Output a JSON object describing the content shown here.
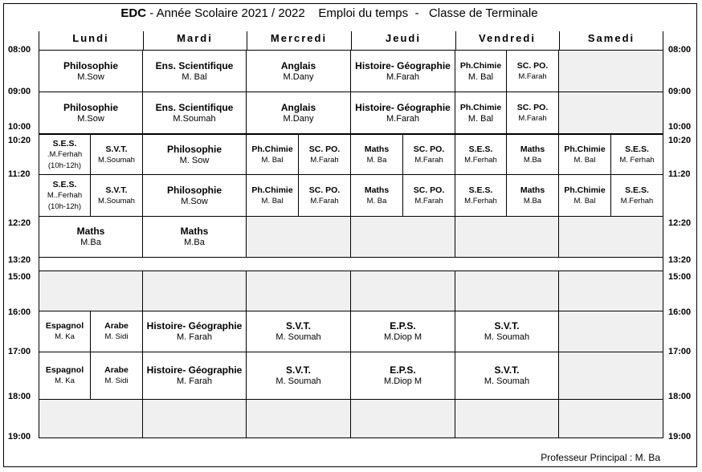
{
  "header": {
    "school": "EDC",
    "rest": " - Année Scolaire 2021 / 2022    Emploi du temps  -   Classe de Terminale"
  },
  "days": [
    "Lundi",
    "Mardi",
    "Mercredi",
    "Jeudi",
    "Vendredi",
    "Samedi"
  ],
  "times": {
    "left": [
      "08:00",
      "09:00",
      "10:00",
      "10:20",
      "11:20",
      "12:20",
      "13:20",
      "15:00",
      "16:00",
      "17:00",
      "18:00",
      "19:00"
    ],
    "right": [
      "08:00",
      "09:00",
      "10:00",
      "10:20",
      "11:20",
      "12:20",
      "13:20",
      "15:00",
      "16:00",
      "17:00",
      "18:00",
      "19:00"
    ]
  },
  "slots": {
    "r1": {
      "lundi": {
        "subject": "Philosophie",
        "teacher": "M.Sow"
      },
      "mardi": {
        "subject": "Ens. Scientifique",
        "teacher": "M. Bal"
      },
      "mercredi": {
        "subject": "Anglais",
        "teacher": "M.Dany"
      },
      "jeudi": {
        "subject": "Histoire- Géographie",
        "teacher": "M.Farah"
      },
      "vend_a": {
        "subject": "Ph.Chimie",
        "teacher": "M. Bal"
      },
      "vend_b": {
        "subject": "SC. PO.",
        "teacher": "M.Farah"
      }
    },
    "r2": {
      "lundi": {
        "subject": "Philosophie",
        "teacher": "M.Sow"
      },
      "mardi": {
        "subject": "Ens. Scientifique",
        "teacher": "M.Soumah"
      },
      "mercredi": {
        "subject": "Anglais",
        "teacher": "M.Dany"
      },
      "jeudi": {
        "subject": "Histoire- Géographie",
        "teacher": "M.Farah"
      },
      "vend_a": {
        "subject": "Ph.Chimie",
        "teacher": "M. Bal"
      },
      "vend_b": {
        "subject": "SC. PO.",
        "teacher": "M.Farah"
      }
    },
    "r3": {
      "lun_a": {
        "subject": "S.E.S.",
        "teacher": ".M.Ferhah",
        "note": "(10h-12h)"
      },
      "lun_b": {
        "subject": "S.V.T.",
        "teacher": "M.Soumah"
      },
      "mardi": {
        "subject": "Philosophie",
        "teacher": "M. Sow"
      },
      "mer_a": {
        "subject": "Ph.Chimie",
        "teacher": "M. Bal"
      },
      "mer_b": {
        "subject": "SC. PO.",
        "teacher": "M.Farah"
      },
      "jeu_a": {
        "subject": "Maths",
        "teacher": "M. Ba"
      },
      "jeu_b": {
        "subject": "SC. PO.",
        "teacher": "M.Farah"
      },
      "ven_a": {
        "subject": "S.E.S.",
        "teacher": "M.Ferhah"
      },
      "ven_b": {
        "subject": "Maths",
        "teacher": "M.Ba"
      },
      "sam_a": {
        "subject": "Ph.Chimie",
        "teacher": "M. Bal"
      },
      "sam_b": {
        "subject": "S.E.S.",
        "teacher": "M. Ferhah"
      }
    },
    "r4": {
      "lun_a": {
        "subject": "S.E.S.",
        "teacher": "M..Ferhah",
        "note": "(10h-12h)"
      },
      "lun_b": {
        "subject": "S.V.T.",
        "teacher": "M.Soumah"
      },
      "mardi": {
        "subject": "Philosophie",
        "teacher": "M.Sow"
      },
      "mer_a": {
        "subject": "Ph.Chimie",
        "teacher": "M. Bal"
      },
      "mer_b": {
        "subject": "SC. PO.",
        "teacher": "M.Farah"
      },
      "jeu_a": {
        "subject": "Maths",
        "teacher": "M. Ba"
      },
      "jeu_b": {
        "subject": "SC. PO.",
        "teacher": "M.Farah"
      },
      "ven_a": {
        "subject": "S.E.S.",
        "teacher": "M.Ferhah"
      },
      "ven_b": {
        "subject": "Maths",
        "teacher": "M.Ba"
      },
      "sam_a": {
        "subject": "Ph.Chimie",
        "teacher": "M. Bal"
      },
      "sam_b": {
        "subject": "S.E.S.",
        "teacher": "M.Ferhah"
      }
    },
    "r5": {
      "lundi": {
        "subject": "Maths",
        "teacher": "M.Ba"
      },
      "mardi": {
        "subject": "Maths",
        "teacher": "M.Ba"
      }
    },
    "r7": {
      "lun_a": {
        "subject": "Espagnol",
        "teacher": "M. Ka"
      },
      "lun_b": {
        "subject": "Arabe",
        "teacher": "M. Sidi"
      },
      "mardi": {
        "subject": "Histoire- Géographie",
        "teacher": "M. Farah"
      },
      "mercredi": {
        "subject": "S.V.T.",
        "teacher": "M. Soumah"
      },
      "jeudi": {
        "subject": "E.P.S.",
        "teacher": "M.Diop M"
      },
      "vendredi": {
        "subject": "S.V.T.",
        "teacher": "M. Soumah"
      }
    },
    "r8": {
      "lun_a": {
        "subject": "Espagnol",
        "teacher": "M. Ka"
      },
      "lun_b": {
        "subject": "Arabe",
        "teacher": "M. Sidi"
      },
      "mardi": {
        "subject": "Histoire- Géographie",
        "teacher": "M. Farah"
      },
      "mercredi": {
        "subject": "S.V.T.",
        "teacher": "M. Soumah"
      },
      "jeudi": {
        "subject": "E.P.S.",
        "teacher": "M.Diop M"
      },
      "vendredi": {
        "subject": "S.V.T.",
        "teacher": "M. Soumah"
      }
    }
  },
  "footer": "Professeur Principal : M. Ba"
}
